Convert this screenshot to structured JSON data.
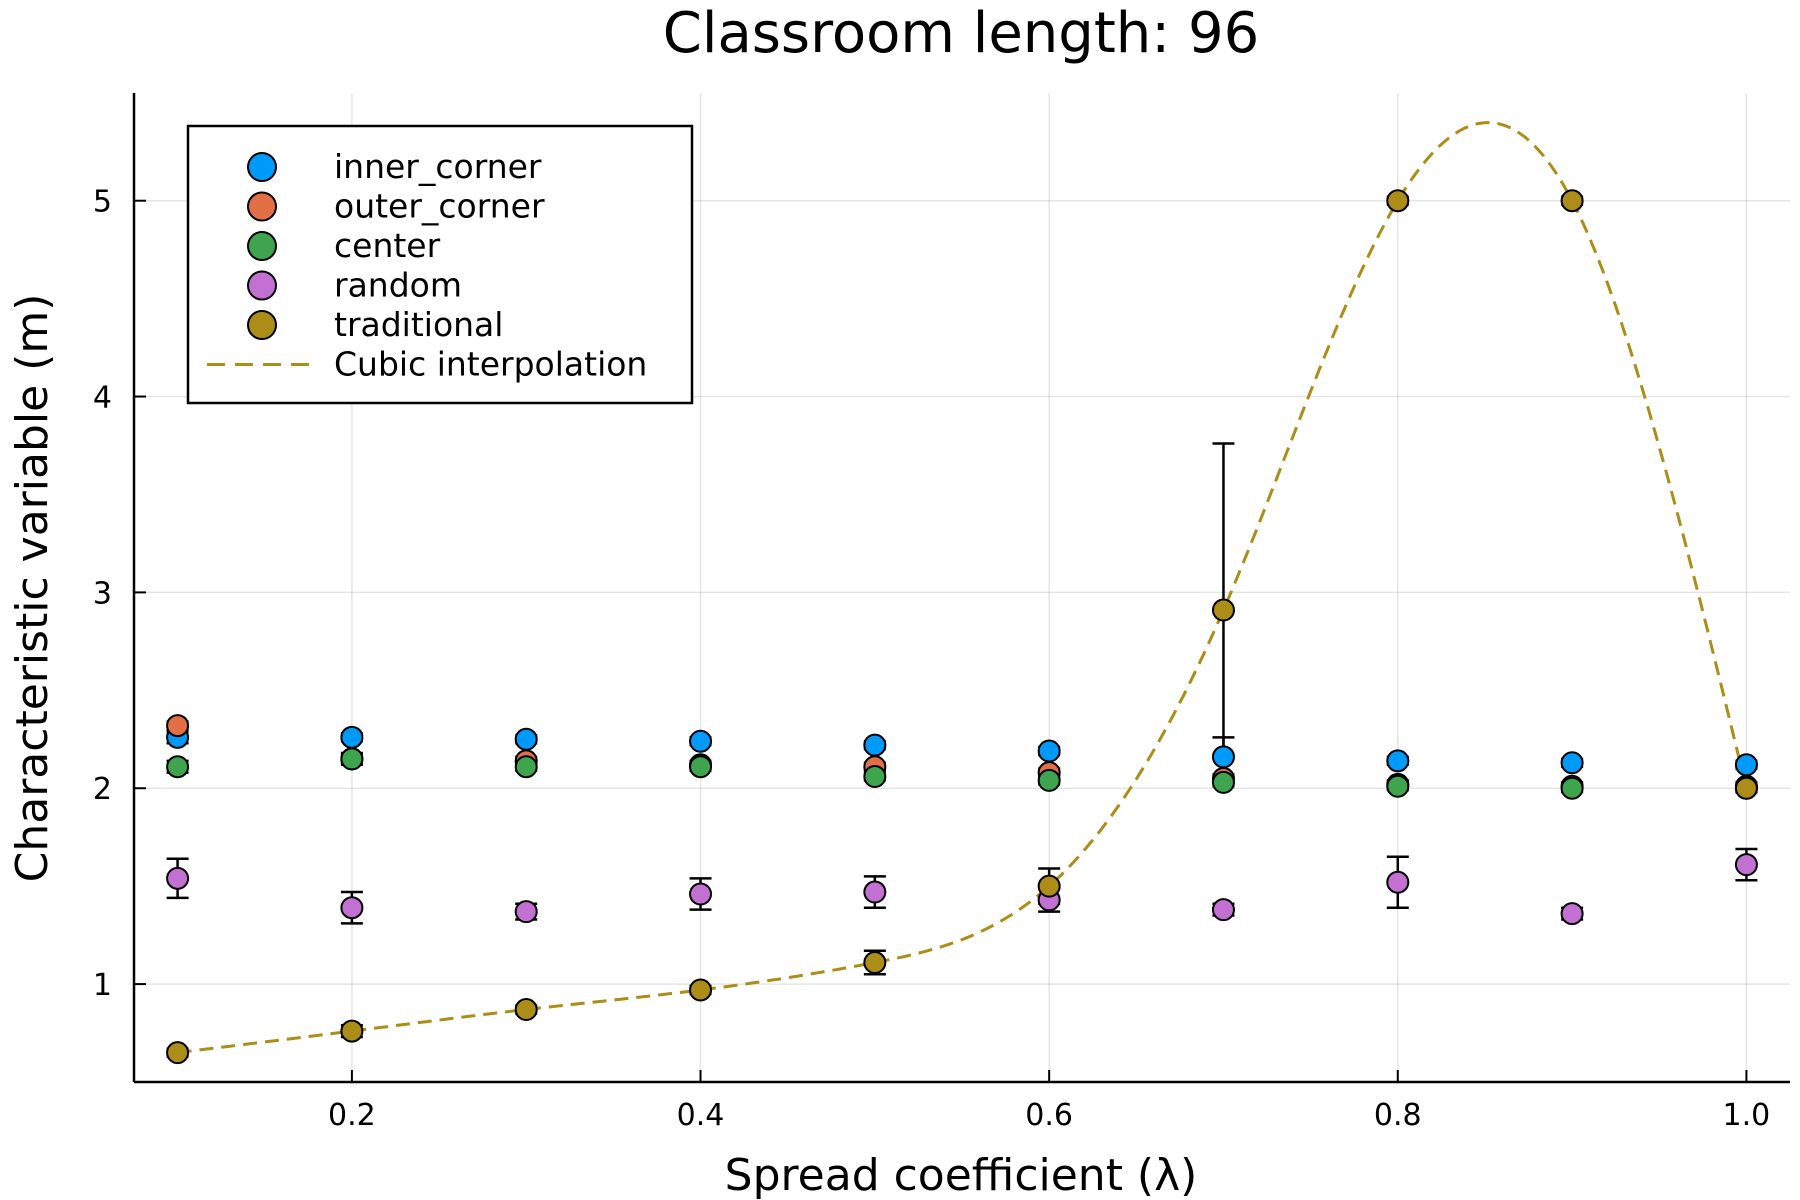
{
  "chart_data": {
    "type": "scatter",
    "title": "Classroom length: 96",
    "xlabel": "Spread coefficient (λ)",
    "ylabel": "Characteristic variable (m)",
    "xlim": [
      0.075,
      1.025
    ],
    "ylim": [
      0.5,
      5.55
    ],
    "xticks": [
      0.2,
      0.4,
      0.6,
      0.8,
      1.0
    ],
    "xtick_labels": [
      "0.2",
      "0.4",
      "0.6",
      "0.8",
      "1.0"
    ],
    "yticks": [
      1,
      2,
      3,
      4,
      5
    ],
    "ytick_labels": [
      "1",
      "2",
      "3",
      "4",
      "5"
    ],
    "grid": true,
    "legend_position": "top-left",
    "x": [
      0.1,
      0.2,
      0.3,
      0.4,
      0.5,
      0.6,
      0.7,
      0.8,
      0.9,
      1.0
    ],
    "series": [
      {
        "name": "inner_corner",
        "color": "#009AFA",
        "y": [
          2.26,
          2.26,
          2.25,
          2.24,
          2.22,
          2.19,
          2.16,
          2.14,
          2.13,
          2.12
        ],
        "err": [
          0.03,
          0.02,
          0.02,
          0.02,
          0.02,
          0.02,
          0.1,
          0.02,
          0.02,
          0.02
        ]
      },
      {
        "name": "outer_corner",
        "color": "#E26F46",
        "y": [
          2.32,
          2.15,
          2.14,
          2.12,
          2.11,
          2.08,
          2.05,
          2.02,
          2.01,
          2.01
        ],
        "err": [
          0.02,
          0.02,
          0.02,
          0.02,
          0.02,
          0.02,
          0.02,
          0.02,
          0.02,
          0.02
        ]
      },
      {
        "name": "center",
        "color": "#3EA44E",
        "y": [
          2.11,
          2.15,
          2.11,
          2.11,
          2.06,
          2.04,
          2.03,
          2.01,
          2.0,
          2.0
        ],
        "err": [
          0.03,
          0.03,
          0.02,
          0.02,
          0.02,
          0.02,
          0.02,
          0.02,
          0.02,
          0.02
        ]
      },
      {
        "name": "random",
        "color": "#C271D2",
        "y": [
          1.54,
          1.39,
          1.37,
          1.46,
          1.47,
          1.43,
          1.38,
          1.52,
          1.36,
          1.61
        ],
        "err": [
          0.1,
          0.08,
          0.04,
          0.08,
          0.08,
          0.06,
          0.03,
          0.13,
          0.03,
          0.08
        ]
      },
      {
        "name": "traditional",
        "color": "#AC8D18",
        "y": [
          0.65,
          0.76,
          0.87,
          0.97,
          1.11,
          1.5,
          2.91,
          5.0,
          5.0,
          2.0
        ],
        "err": [
          0.02,
          0.03,
          0.02,
          0.02,
          0.06,
          0.09,
          0.85,
          0.02,
          0.02,
          0.02
        ]
      }
    ],
    "interpolation": {
      "name": "Cubic interpolation",
      "color": "#AC8D18",
      "style": "dashed",
      "of_series": "traditional"
    }
  }
}
